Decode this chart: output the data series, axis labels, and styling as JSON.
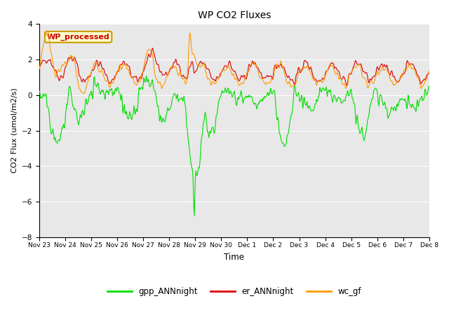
{
  "title": "WP CO2 Fluxes",
  "xlabel": "Time",
  "ylabel": "CO2 Flux (umol/m2/s)",
  "ylim": [
    -8,
    4
  ],
  "yticks": [
    -8,
    -6,
    -4,
    -2,
    0,
    2,
    4
  ],
  "bg_color": "#e8e8e8",
  "gpp_color": "#00dd00",
  "er_color": "#dd0000",
  "wc_color": "#ff9900",
  "annotation_text": "WP_processed",
  "annotation_fg": "#cc0000",
  "annotation_bg": "#ffffcc",
  "legend_labels": [
    "gpp_ANNnight",
    "er_ANNnight",
    "wc_gf"
  ],
  "tick_labels": [
    "Nov 23",
    "Nov 24",
    "Nov 25",
    "Nov 26",
    "Nov 27",
    "Nov 28",
    "Nov 29",
    "Nov 30",
    "Dec 1",
    "Dec 2",
    "Dec 3",
    "Dec 4",
    "Dec 5",
    "Dec 6",
    "Dec 7",
    "Dec 8"
  ],
  "n_points": 720,
  "seed": 42
}
